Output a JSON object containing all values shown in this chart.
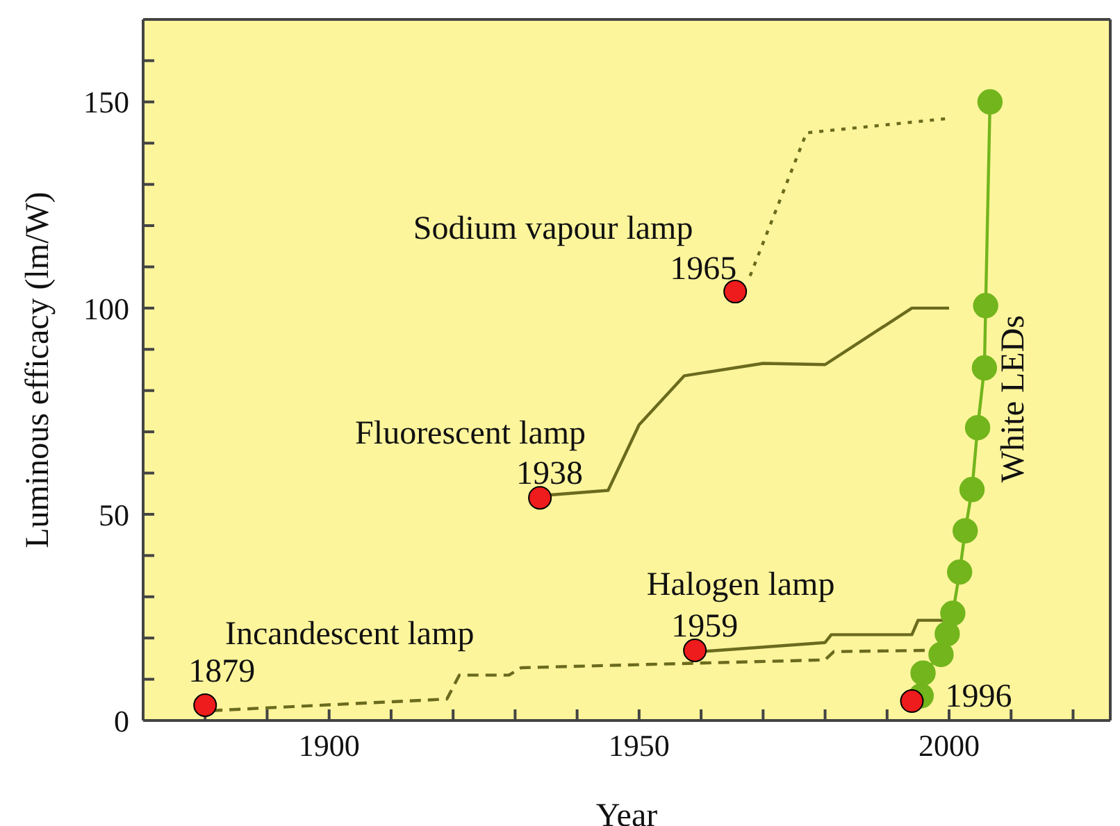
{
  "chart_data": {
    "type": "line",
    "xlabel": "Year",
    "ylabel": "Luminous efficacy (lm/W)",
    "xlim": [
      1870,
      2026
    ],
    "ylim": [
      0,
      170
    ],
    "xticks": [
      {
        "value": 1870,
        "label": null
      },
      {
        "value": 1880,
        "label": null
      },
      {
        "value": 1890,
        "label": null
      },
      1900,
      {
        "value": 1910,
        "label": null
      },
      {
        "value": 1920,
        "label": null
      },
      {
        "value": 1930,
        "label": null
      },
      {
        "value": 1940,
        "label": null
      },
      1950,
      {
        "value": 1960,
        "label": null
      },
      {
        "value": 1970,
        "label": null
      },
      {
        "value": 1980,
        "label": null
      },
      {
        "value": 1990,
        "label": null
      },
      2000,
      {
        "value": 2010,
        "label": null
      },
      {
        "value": 2020,
        "label": null
      }
    ],
    "yticks": [
      0,
      {
        "value": 10,
        "label": null
      },
      {
        "value": 20,
        "label": null
      },
      {
        "value": 30,
        "label": null
      },
      {
        "value": 40,
        "label": null
      },
      50,
      {
        "value": 60,
        "label": null
      },
      {
        "value": 70,
        "label": null
      },
      {
        "value": 80,
        "label": null
      },
      {
        "value": 90,
        "label": null
      },
      100,
      {
        "value": 110,
        "label": null
      },
      {
        "value": 120,
        "label": null
      },
      {
        "value": 130,
        "label": null
      },
      {
        "value": 140,
        "label": null
      },
      150,
      {
        "value": 160,
        "label": null
      }
    ],
    "series": [
      {
        "line_style": "dashed",
        "marker": "none",
        "color": "#6b6b1e",
        "x": [
          1881,
          1919,
          1921,
          1929,
          1931,
          1980,
          1981.4,
          1996.3
        ],
        "values": [
          2.4,
          5.2,
          11,
          11,
          12.8,
          14.7,
          16.7,
          17
        ]
      },
      {
        "line_style": "solid",
        "marker": "none",
        "color": "#6b6b1e",
        "x": [
          1960,
          1980,
          1981,
          1994,
          1995,
          2000
        ],
        "values": [
          16.7,
          18.9,
          20.8,
          20.8,
          24.3,
          24.3
        ]
      },
      {
        "line_style": "solid",
        "marker": "none",
        "color": "#6b6b1e",
        "x": [
          1935.7,
          1945,
          1950,
          1957.3,
          1970,
          1980,
          1994,
          2000
        ],
        "values": [
          54.7,
          55.8,
          71.7,
          83.6,
          86.6,
          86.3,
          100,
          100
        ]
      },
      {
        "line_style": "dotted",
        "marker": "none",
        "color": "#6b6b1e",
        "x": [
          1967.9,
          1977,
          2000
        ],
        "values": [
          107.8,
          142.5,
          146
        ]
      },
      {
        "name": "White LEDs",
        "line_style": "solid",
        "marker": "circle",
        "color": "#72b51c",
        "x": [
          1995.5,
          1995.8,
          1998.7,
          1999.7,
          2000.6,
          2001.7,
          2002.6,
          2003.7,
          2004.6,
          2005.7,
          2005.9,
          2006.6
        ],
        "values": [
          6,
          11.5,
          16,
          21,
          26,
          36,
          46,
          56,
          71,
          85.5,
          100.6,
          150
        ]
      },
      {
        "type": "scatter",
        "marker": "circle",
        "color": "#ee1c1c",
        "x": [
          1880,
          1934,
          1959,
          1965.5,
          1994
        ],
        "values": [
          3.7,
          54,
          17,
          104,
          4.7
        ]
      }
    ],
    "annotations": [
      {
        "text": "Incandescent lamp",
        "x": 1880,
        "y": 3.7
      },
      {
        "text": "1879",
        "x": 1880,
        "y": 3.7
      },
      {
        "text": "Fluorescent lamp",
        "x": 1934,
        "y": 54
      },
      {
        "text": "1938",
        "x": 1934,
        "y": 54
      },
      {
        "text": "Halogen lamp",
        "x": 1959,
        "y": 17
      },
      {
        "text": "1959",
        "x": 1959,
        "y": 17
      },
      {
        "text": "Sodium vapour lamp",
        "x": 1965.5,
        "y": 104
      },
      {
        "text": "1965",
        "x": 1965.5,
        "y": 104
      },
      {
        "text": "1996",
        "x": 1994,
        "y": 4.7
      }
    ]
  }
}
